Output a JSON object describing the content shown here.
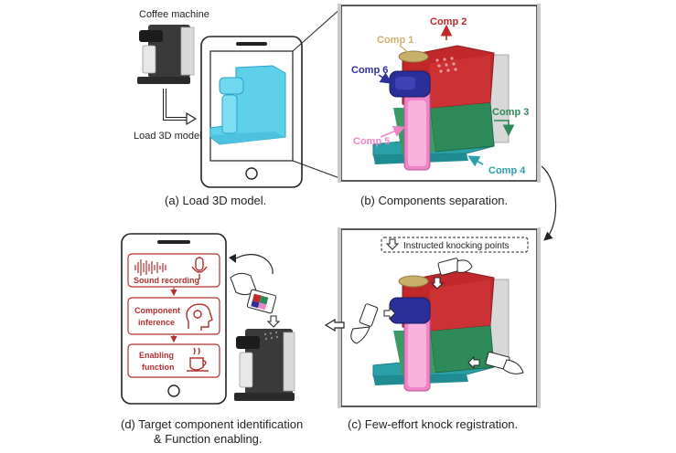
{
  "panel_a": {
    "coffee_machine_label": "Coffee machine",
    "load_label": "Load 3D model",
    "caption": "(a)  Load 3D model."
  },
  "panel_b": {
    "caption": "(b)  Components separation.",
    "components": {
      "comp1": "Comp 1",
      "comp2": "Comp 2",
      "comp3": "Comp 3",
      "comp4": "Comp 4",
      "comp5": "Comp 5",
      "comp6": "Comp 6"
    }
  },
  "panel_c": {
    "caption": "(c)  Few-effort knock registration.",
    "legend": "Instructed knocking points"
  },
  "panel_d": {
    "caption_line1": "(d) Target component identification",
    "caption_line2": "& Function enabling.",
    "steps": {
      "sound": "Sound recording",
      "inference_line1": "Component",
      "inference_line2": "inference",
      "enabling_line1": "Enabling",
      "enabling_line2": "function"
    }
  },
  "colors": {
    "comp1": "#c9b06a",
    "comp2": "#c0282a",
    "comp3": "#2f8a5a",
    "comp4": "#2aa1a8",
    "comp5": "#ef84c8",
    "comp6": "#2a2f9a",
    "model_blue": "#5fd0ea",
    "app_red": "#b4302e"
  }
}
